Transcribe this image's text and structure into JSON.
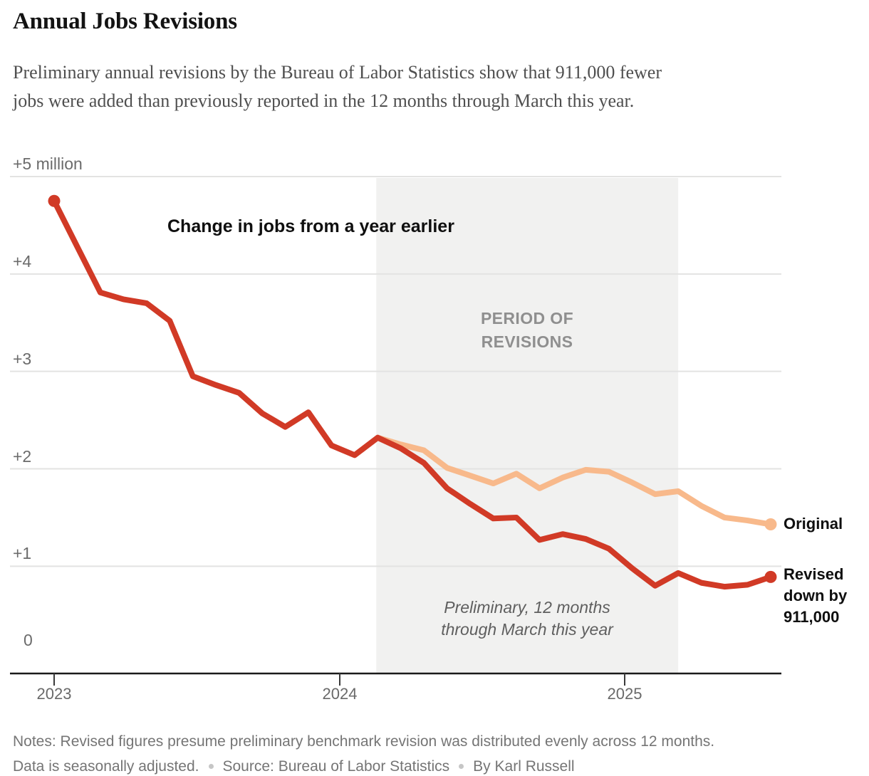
{
  "header": {
    "title": "Annual Jobs Revisions",
    "subtitle": "Preliminary annual revisions by the Bureau of Labor Statistics show that 911,000 fewer\njobs were added than previously reported in the 12 months through March this year."
  },
  "annotations": {
    "chart_label": "Change in jobs from a year earlier",
    "preliminary": "Preliminary, 12 months through March this year"
  },
  "legend": {
    "original_label": "Original",
    "revised_label": "Revised down by 911,000"
  },
  "footer": {
    "notes_line1": "Notes: Revised figures presume preliminary benchmark revision was distributed evenly across 12 months.",
    "notes_line2_parts": [
      "Data is seasonally adjusted.",
      "Source: Bureau of Labor Statistics",
      "By Karl Russell"
    ]
  },
  "colors": {
    "revised_red": "#d13a26",
    "original_orange": "#f8b98b",
    "revision_shade": "#f1f1f0",
    "gridline": "#e3e3e2",
    "axis_line": "#1a1a1a",
    "tick": "#3a3a3a"
  },
  "chart_data": {
    "type": "line",
    "title": "Annual Jobs Revisions",
    "unit": "change in jobs from a year earlier, millions",
    "ylim": [
      0,
      5
    ],
    "grid": "horizontal",
    "months": [
      "2023-01",
      "2023-02",
      "2023-03",
      "2023-04",
      "2023-05",
      "2023-06",
      "2023-07",
      "2023-08",
      "2023-09",
      "2023-10",
      "2023-11",
      "2023-12",
      "2024-01",
      "2024-02",
      "2024-03",
      "2024-04",
      "2024-05",
      "2024-06",
      "2024-07",
      "2024-08",
      "2024-09",
      "2024-10",
      "2024-11",
      "2024-12",
      "2025-01",
      "2025-02",
      "2025-03",
      "2025-04",
      "2025-05",
      "2025-06",
      "2025-07",
      "2025-08"
    ],
    "y_ticks": [
      {
        "value": 5,
        "label": "+5 million"
      },
      {
        "value": 4,
        "label": "+4"
      },
      {
        "value": 3,
        "label": "+3"
      },
      {
        "value": 2,
        "label": "+2"
      },
      {
        "value": 1,
        "label": "+1"
      },
      {
        "value": 0,
        "label": "0"
      }
    ],
    "x_ticks": [
      "2023",
      "2024",
      "2025"
    ],
    "series": [
      {
        "name": "Original",
        "color": "#f8b98b",
        "start_index": 14,
        "values": [
          2.32,
          2.25,
          2.19,
          2.01,
          1.93,
          1.85,
          1.95,
          1.8,
          1.91,
          1.99,
          1.97,
          1.86,
          1.74,
          1.77,
          1.62,
          1.5,
          1.47,
          1.43
        ]
      },
      {
        "name": "Revised",
        "color": "#d13a26",
        "start_index": 0,
        "values": [
          4.75,
          4.28,
          3.81,
          3.74,
          3.7,
          3.52,
          2.95,
          2.86,
          2.78,
          2.57,
          2.43,
          2.58,
          2.24,
          2.14,
          2.32,
          2.21,
          2.06,
          1.8,
          1.64,
          1.49,
          1.5,
          1.27,
          1.33,
          1.28,
          1.18,
          0.98,
          0.8,
          0.93,
          0.83,
          0.79,
          0.81,
          0.89
        ]
      }
    ],
    "revision_period": {
      "label": "PERIOD OF REVISIONS",
      "start_month": "2024-03",
      "end_month": "2025-04",
      "start_index": 14,
      "end_index": 27
    },
    "revision_amount_label": "911,000"
  }
}
